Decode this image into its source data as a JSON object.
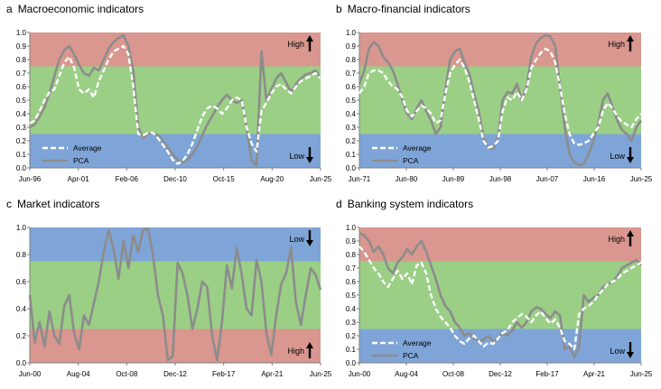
{
  "colors": {
    "high_zone": "#D9978F",
    "mid_zone": "#9BCF86",
    "low_zone": "#7FA5D8",
    "average_line": "#FFFFFF",
    "pca_line": "#8C8C8C",
    "axis": "#7F7F7F"
  },
  "chart_data": [
    {
      "type": "line",
      "panel_letter": "a",
      "title": "Macroeconomic indicators",
      "ylim": [
        0,
        1.0
      ],
      "yticks": [
        "0.0",
        "0.1",
        "0.2",
        "0.3",
        "0.4",
        "0.5",
        "0.6",
        "0.7",
        "0.8",
        "0.9",
        "1.0"
      ],
      "xticks": [
        "Jun-96",
        "Apr-01",
        "Feb-06",
        "Dec-10",
        "Oct-15",
        "Aug-20",
        "Jun-25"
      ],
      "bands": [
        {
          "from": 0.75,
          "to": 1.0,
          "zone": "high"
        },
        {
          "from": 0.25,
          "to": 0.75,
          "zone": "mid"
        },
        {
          "from": 0.0,
          "to": 0.25,
          "zone": "low"
        }
      ],
      "markers": [
        {
          "label": "High",
          "direction": "up",
          "position": "top-right"
        },
        {
          "label": "Low",
          "direction": "down",
          "position": "bottom-right"
        }
      ],
      "legend": {
        "position": "bottom-left",
        "entries": [
          "Average",
          "PCA"
        ]
      },
      "series": [
        {
          "name": "PCA",
          "style": "solid",
          "values": [
            0.3,
            0.32,
            0.38,
            0.45,
            0.55,
            0.68,
            0.8,
            0.87,
            0.9,
            0.84,
            0.76,
            0.7,
            0.68,
            0.74,
            0.72,
            0.8,
            0.88,
            0.93,
            0.96,
            0.98,
            0.9,
            0.72,
            0.3,
            0.22,
            0.25,
            0.26,
            0.24,
            0.2,
            0.15,
            0.1,
            0.06,
            0.04,
            0.06,
            0.1,
            0.16,
            0.24,
            0.32,
            0.38,
            0.45,
            0.5,
            0.54,
            0.5,
            0.48,
            0.5,
            0.3,
            0.05,
            0.02,
            0.86,
            0.5,
            0.58,
            0.66,
            0.7,
            0.63,
            0.56,
            0.62,
            0.66,
            0.69,
            0.7,
            0.72,
            0.66
          ]
        },
        {
          "name": "Average",
          "style": "dashed",
          "values": [
            0.33,
            0.35,
            0.42,
            0.5,
            0.56,
            0.58,
            0.68,
            0.78,
            0.82,
            0.74,
            0.58,
            0.55,
            0.58,
            0.52,
            0.64,
            0.72,
            0.8,
            0.86,
            0.88,
            0.9,
            0.84,
            0.6,
            0.25,
            0.24,
            0.26,
            0.26,
            0.22,
            0.17,
            0.12,
            0.06,
            0.03,
            0.05,
            0.1,
            0.18,
            0.28,
            0.38,
            0.44,
            0.46,
            0.44,
            0.4,
            0.44,
            0.5,
            0.52,
            0.5,
            0.3,
            0.18,
            0.12,
            0.42,
            0.48,
            0.55,
            0.6,
            0.62,
            0.58,
            0.55,
            0.6,
            0.64,
            0.66,
            0.68,
            0.7,
            0.66
          ]
        }
      ]
    },
    {
      "type": "line",
      "panel_letter": "b",
      "title": "Macro-financial indicators",
      "ylim": [
        0,
        1.0
      ],
      "yticks": [
        "0.0",
        "0.1",
        "0.2",
        "0.3",
        "0.4",
        "0.5",
        "0.6",
        "0.7",
        "0.8",
        "0.9",
        "1.0"
      ],
      "xticks": [
        "Jun-71",
        "Jun-80",
        "Jun-89",
        "Jun-98",
        "Jun-07",
        "Jun-16",
        "Jun-25"
      ],
      "bands": [
        {
          "from": 0.75,
          "to": 1.0,
          "zone": "high"
        },
        {
          "from": 0.25,
          "to": 0.75,
          "zone": "mid"
        },
        {
          "from": 0.0,
          "to": 0.25,
          "zone": "low"
        }
      ],
      "markers": [
        {
          "label": "High",
          "direction": "up",
          "position": "top-right"
        },
        {
          "label": "Low",
          "direction": "down",
          "position": "bottom-right"
        }
      ],
      "legend": {
        "position": "bottom-left",
        "entries": [
          "Average",
          "PCA"
        ]
      },
      "series": [
        {
          "name": "PCA",
          "style": "solid",
          "values": [
            0.62,
            0.72,
            0.88,
            0.93,
            0.9,
            0.82,
            0.78,
            0.72,
            0.62,
            0.5,
            0.4,
            0.36,
            0.44,
            0.5,
            0.42,
            0.35,
            0.25,
            0.3,
            0.58,
            0.8,
            0.86,
            0.88,
            0.78,
            0.7,
            0.55,
            0.42,
            0.22,
            0.15,
            0.14,
            0.22,
            0.5,
            0.56,
            0.55,
            0.62,
            0.5,
            0.6,
            0.82,
            0.92,
            0.96,
            0.98,
            0.97,
            0.9,
            0.6,
            0.3,
            0.1,
            0.04,
            0.02,
            0.03,
            0.1,
            0.2,
            0.32,
            0.5,
            0.55,
            0.45,
            0.35,
            0.28,
            0.25,
            0.2,
            0.3,
            0.35
          ]
        },
        {
          "name": "Average",
          "style": "dashed",
          "values": [
            0.55,
            0.6,
            0.7,
            0.72,
            0.72,
            0.7,
            0.64,
            0.6,
            0.58,
            0.52,
            0.42,
            0.38,
            0.42,
            0.46,
            0.44,
            0.4,
            0.33,
            0.35,
            0.55,
            0.7,
            0.76,
            0.8,
            0.74,
            0.64,
            0.5,
            0.36,
            0.2,
            0.15,
            0.16,
            0.2,
            0.42,
            0.52,
            0.5,
            0.56,
            0.5,
            0.58,
            0.74,
            0.8,
            0.85,
            0.88,
            0.86,
            0.78,
            0.6,
            0.4,
            0.25,
            0.18,
            0.17,
            0.18,
            0.2,
            0.25,
            0.3,
            0.42,
            0.48,
            0.44,
            0.38,
            0.34,
            0.32,
            0.3,
            0.36,
            0.4
          ]
        }
      ]
    },
    {
      "type": "line",
      "panel_letter": "c",
      "title": "Market indicators",
      "ylim": [
        0,
        1.0
      ],
      "yticks": [
        "0.0",
        "0.2",
        "0.4",
        "0.6",
        "0.8",
        "1.0"
      ],
      "xticks": [
        "Jun-00",
        "Aug-04",
        "Oct-08",
        "Dec-12",
        "Feb-17",
        "Apr-21",
        "Jun-25"
      ],
      "bands": [
        {
          "from": 0.75,
          "to": 1.0,
          "zone": "low"
        },
        {
          "from": 0.25,
          "to": 0.75,
          "zone": "mid"
        },
        {
          "from": 0.0,
          "to": 0.25,
          "zone": "high"
        }
      ],
      "markers": [
        {
          "label": "Low",
          "direction": "down",
          "position": "top-right"
        },
        {
          "label": "High",
          "direction": "up",
          "position": "bottom-right"
        }
      ],
      "legend": {
        "position": "none",
        "entries": []
      },
      "series": [
        {
          "name": "PCA",
          "style": "solid",
          "values": [
            0.5,
            0.15,
            0.3,
            0.12,
            0.38,
            0.2,
            0.14,
            0.42,
            0.5,
            0.22,
            0.1,
            0.35,
            0.28,
            0.44,
            0.6,
            0.82,
            0.98,
            0.84,
            0.62,
            0.9,
            0.7,
            0.94,
            0.82,
            0.98,
            0.99,
            0.8,
            0.5,
            0.35,
            0.02,
            0.05,
            0.74,
            0.66,
            0.5,
            0.25,
            0.4,
            0.6,
            0.56,
            0.2,
            0.02,
            0.3,
            0.72,
            0.55,
            0.85,
            0.65,
            0.4,
            0.35,
            0.76,
            0.6,
            0.22,
            0.06,
            0.35,
            0.58,
            0.66,
            0.85,
            0.45,
            0.28,
            0.5,
            0.7,
            0.65,
            0.54
          ]
        }
      ]
    },
    {
      "type": "line",
      "panel_letter": "d",
      "title": "Banking system indicators",
      "ylim": [
        0,
        1.0
      ],
      "yticks": [
        "0.0",
        "0.1",
        "0.2",
        "0.3",
        "0.4",
        "0.5",
        "0.6",
        "0.7",
        "0.8",
        "0.9",
        "1.0"
      ],
      "xticks": [
        "Jun-00",
        "Aug-04",
        "Oct-08",
        "Dec-12",
        "Feb-17",
        "Apr-21",
        "Jun-25"
      ],
      "bands": [
        {
          "from": 0.75,
          "to": 1.0,
          "zone": "high"
        },
        {
          "from": 0.25,
          "to": 0.75,
          "zone": "mid"
        },
        {
          "from": 0.0,
          "to": 0.25,
          "zone": "low"
        }
      ],
      "markers": [
        {
          "label": "High",
          "direction": "up",
          "position": "top-right"
        },
        {
          "label": "Low",
          "direction": "down",
          "position": "bottom-right"
        }
      ],
      "legend": {
        "position": "bottom-left",
        "entries": [
          "Average",
          "PCA"
        ]
      },
      "series": [
        {
          "name": "PCA",
          "style": "solid",
          "values": [
            0.96,
            0.94,
            0.9,
            0.82,
            0.86,
            0.8,
            0.7,
            0.66,
            0.74,
            0.78,
            0.84,
            0.8,
            0.86,
            0.9,
            0.82,
            0.72,
            0.62,
            0.5,
            0.42,
            0.38,
            0.3,
            0.26,
            0.2,
            0.22,
            0.18,
            0.16,
            0.17,
            0.2,
            0.16,
            0.18,
            0.22,
            0.2,
            0.24,
            0.3,
            0.26,
            0.3,
            0.38,
            0.41,
            0.4,
            0.36,
            0.33,
            0.38,
            0.35,
            0.1,
            0.12,
            0.04,
            0.12,
            0.5,
            0.45,
            0.48,
            0.5,
            0.56,
            0.58,
            0.6,
            0.64,
            0.7,
            0.72,
            0.74,
            0.76,
            0.72
          ]
        },
        {
          "name": "Average",
          "style": "dashed",
          "values": [
            0.86,
            0.82,
            0.76,
            0.7,
            0.66,
            0.6,
            0.56,
            0.62,
            0.68,
            0.62,
            0.66,
            0.58,
            0.72,
            0.74,
            0.66,
            0.5,
            0.4,
            0.34,
            0.3,
            0.26,
            0.2,
            0.16,
            0.14,
            0.18,
            0.2,
            0.16,
            0.12,
            0.15,
            0.14,
            0.18,
            0.22,
            0.24,
            0.3,
            0.33,
            0.36,
            0.34,
            0.3,
            0.35,
            0.38,
            0.33,
            0.29,
            0.32,
            0.26,
            0.16,
            0.14,
            0.1,
            0.36,
            0.4,
            0.42,
            0.45,
            0.5,
            0.54,
            0.58,
            0.6,
            0.62,
            0.66,
            0.68,
            0.7,
            0.72,
            0.74
          ]
        }
      ]
    }
  ]
}
